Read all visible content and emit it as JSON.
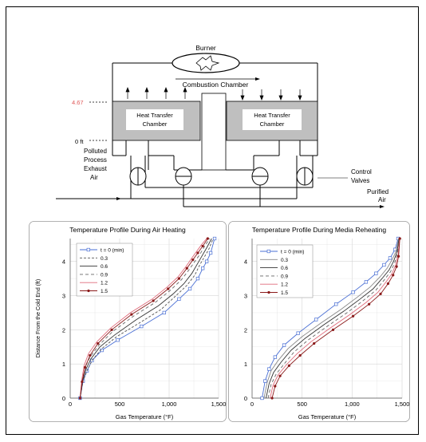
{
  "diagram": {
    "burner_label": "Burner",
    "combustion_label": "Combustion Chamber",
    "chamber_left_label": [
      "Heat Transfer",
      "Chamber"
    ],
    "chamber_right_label": [
      "Heat Transfer",
      "Chamber"
    ],
    "height_top_label": "4.67",
    "height_bottom_label": "0 ft",
    "inlet_label": [
      "Polluted",
      "Process",
      "Exhaust",
      "Air"
    ],
    "control_label": [
      "Control",
      "Valves"
    ],
    "outlet_label": [
      "Purified",
      "Air"
    ],
    "colors": {
      "accent": "#e05a5a",
      "chamber_fill": "#bfbfbf"
    }
  },
  "chart_data": [
    {
      "type": "line",
      "title": "Temperature Profile During Air Heating",
      "xlabel": "Gas Temperature (°F)",
      "ylabel": "Distance From the Cold End (ft)",
      "xlim": [
        0,
        1500
      ],
      "ylim": [
        0,
        4.67
      ],
      "xticks": [
        "0",
        "500",
        "1,000",
        "1,500"
      ],
      "yticks": [
        "0",
        "1",
        "2",
        "3",
        "4"
      ],
      "grid": true,
      "legend": "top-left",
      "series": [
        {
          "name": "t = 0 (min)",
          "color": "#4a6fd4",
          "dash": "",
          "marker": "square-open",
          "x": [
            100,
            130,
            170,
            220,
            320,
            480,
            720,
            950,
            1100,
            1210,
            1290,
            1340,
            1380,
            1420,
            1460
          ],
          "y": [
            0,
            0.5,
            0.8,
            1.1,
            1.4,
            1.7,
            2.1,
            2.5,
            2.9,
            3.2,
            3.5,
            3.8,
            4.0,
            4.25,
            4.67
          ]
        },
        {
          "name": "0.3",
          "color": "#555555",
          "dash": "3,2",
          "marker": "",
          "x": [
            100,
            130,
            170,
            220,
            320,
            470,
            700,
            920,
            1070,
            1180,
            1260,
            1310,
            1350,
            1400,
            1445
          ],
          "y": [
            0,
            0.5,
            0.8,
            1.1,
            1.45,
            1.8,
            2.2,
            2.6,
            3.0,
            3.3,
            3.6,
            3.9,
            4.1,
            4.35,
            4.67
          ]
        },
        {
          "name": "0.6",
          "color": "#333333",
          "dash": "",
          "marker": "",
          "x": [
            100,
            125,
            160,
            210,
            300,
            450,
            670,
            890,
            1040,
            1150,
            1230,
            1290,
            1330,
            1380,
            1430
          ],
          "y": [
            0,
            0.5,
            0.85,
            1.15,
            1.5,
            1.85,
            2.3,
            2.7,
            3.05,
            3.35,
            3.65,
            3.95,
            4.15,
            4.4,
            4.67
          ]
        },
        {
          "name": "0.9",
          "color": "#666666",
          "dash": "4,3",
          "marker": "",
          "x": [
            100,
            120,
            150,
            200,
            290,
            430,
            640,
            860,
            1010,
            1120,
            1200,
            1260,
            1310,
            1360,
            1410
          ],
          "y": [
            0,
            0.5,
            0.9,
            1.2,
            1.55,
            1.95,
            2.4,
            2.8,
            3.15,
            3.45,
            3.75,
            4.0,
            4.2,
            4.45,
            4.67
          ]
        },
        {
          "name": "1.2",
          "color": "#e06a7a",
          "dash": "",
          "marker": "",
          "x": [
            100,
            115,
            140,
            185,
            270,
            410,
            610,
            830,
            980,
            1090,
            1170,
            1230,
            1280,
            1330,
            1380
          ],
          "y": [
            0,
            0.5,
            0.95,
            1.3,
            1.65,
            2.05,
            2.5,
            2.9,
            3.25,
            3.55,
            3.85,
            4.1,
            4.3,
            4.5,
            4.67
          ]
        },
        {
          "name": "1.5",
          "color": "#8b1a1a",
          "dash": "",
          "marker": "dot",
          "x": [
            100,
            120,
            150,
            200,
            280,
            420,
            620,
            840,
            990,
            1100,
            1180,
            1240,
            1290,
            1340,
            1390
          ],
          "y": [
            0,
            0.48,
            0.9,
            1.25,
            1.6,
            2.0,
            2.45,
            2.85,
            3.2,
            3.5,
            3.8,
            4.05,
            4.25,
            4.45,
            4.67
          ]
        }
      ]
    },
    {
      "type": "line",
      "title": "Temperature Profile During Media Reheating",
      "xlabel": "Gas Temperature (°F)",
      "ylabel": "",
      "xlim": [
        0,
        1500
      ],
      "ylim": [
        0,
        4.67
      ],
      "xticks": [
        "0",
        "500",
        "1,000",
        "1,500"
      ],
      "yticks": [
        "0",
        "1",
        "2",
        "3",
        "4"
      ],
      "grid": true,
      "legend": "top-left",
      "series": [
        {
          "name": "t = 0 (min)",
          "color": "#4a6fd4",
          "dash": "",
          "marker": "square-open",
          "x": [
            100,
            130,
            170,
            230,
            320,
            460,
            640,
            840,
            1010,
            1140,
            1240,
            1320,
            1380,
            1430,
            1460
          ],
          "y": [
            0,
            0.5,
            0.85,
            1.2,
            1.55,
            1.9,
            2.3,
            2.75,
            3.1,
            3.4,
            3.65,
            3.9,
            4.1,
            4.35,
            4.67
          ]
        },
        {
          "name": "0.3",
          "color": "#888888",
          "dash": "",
          "marker": "",
          "x": [
            120,
            150,
            190,
            260,
            360,
            500,
            690,
            890,
            1050,
            1180,
            1280,
            1350,
            1400,
            1440,
            1465
          ],
          "y": [
            0,
            0.45,
            0.8,
            1.1,
            1.45,
            1.8,
            2.2,
            2.6,
            2.95,
            3.25,
            3.55,
            3.8,
            4.05,
            4.3,
            4.67
          ]
        },
        {
          "name": "0.6",
          "color": "#333333",
          "dash": "",
          "marker": "",
          "x": [
            140,
            170,
            215,
            290,
            390,
            530,
            720,
            920,
            1080,
            1210,
            1300,
            1370,
            1415,
            1450,
            1470
          ],
          "y": [
            0,
            0.42,
            0.75,
            1.05,
            1.4,
            1.75,
            2.15,
            2.55,
            2.9,
            3.2,
            3.5,
            3.75,
            4.0,
            4.28,
            4.67
          ]
        },
        {
          "name": "0.9",
          "color": "#666666",
          "dash": "4,3",
          "marker": "",
          "x": [
            160,
            190,
            240,
            320,
            420,
            560,
            750,
            950,
            1110,
            1235,
            1320,
            1385,
            1425,
            1455,
            1472
          ],
          "y": [
            0,
            0.4,
            0.7,
            1.0,
            1.35,
            1.7,
            2.1,
            2.5,
            2.85,
            3.15,
            3.45,
            3.7,
            3.95,
            4.25,
            4.67
          ]
        },
        {
          "name": "1.2",
          "color": "#e06a7a",
          "dash": "",
          "marker": "",
          "x": [
            180,
            210,
            260,
            345,
            450,
            590,
            780,
            980,
            1140,
            1260,
            1340,
            1400,
            1435,
            1460,
            1475
          ],
          "y": [
            0,
            0.38,
            0.68,
            0.98,
            1.3,
            1.65,
            2.05,
            2.45,
            2.8,
            3.1,
            3.4,
            3.65,
            3.9,
            4.2,
            4.67
          ]
        },
        {
          "name": "1.5",
          "color": "#8b1a1a",
          "dash": "",
          "marker": "dot",
          "x": [
            200,
            230,
            280,
            370,
            480,
            620,
            810,
            1010,
            1170,
            1285,
            1360,
            1410,
            1445,
            1465,
            1478
          ],
          "y": [
            0,
            0.35,
            0.65,
            0.95,
            1.25,
            1.6,
            2.0,
            2.4,
            2.75,
            3.05,
            3.35,
            3.6,
            3.85,
            4.15,
            4.67
          ]
        }
      ]
    }
  ]
}
